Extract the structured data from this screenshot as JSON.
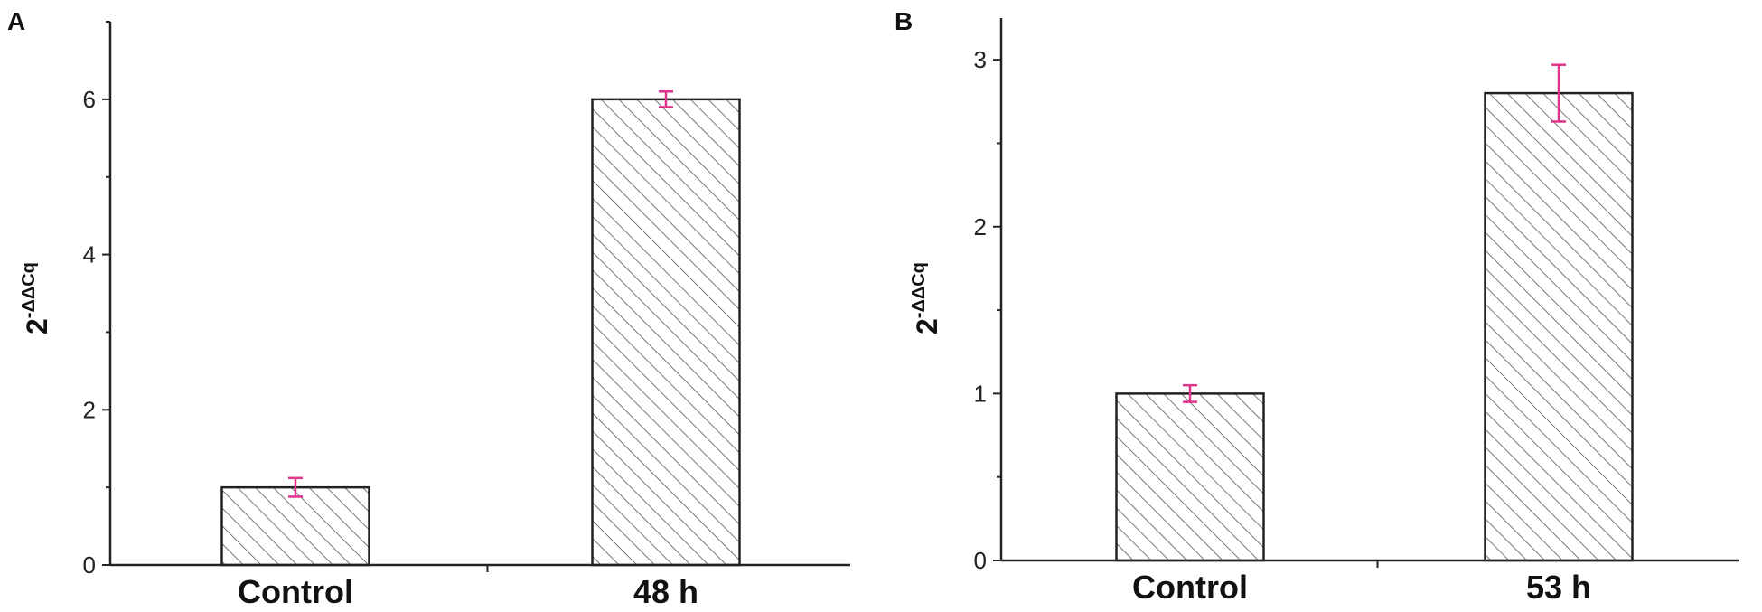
{
  "chart_data": [
    {
      "type": "bar",
      "panel_label": "A",
      "ylabel_base": "2",
      "ylabel_sup": "-ΔΔCq",
      "categories": [
        "Control",
        "48 h"
      ],
      "values": [
        1.0,
        6.0
      ],
      "errors": [
        0.12,
        0.1
      ],
      "ylim": [
        0,
        7
      ],
      "yticks": [
        "0",
        "2",
        "4",
        "6"
      ],
      "ytick_values": [
        0,
        2,
        4,
        6
      ],
      "bar_fill": "hatched",
      "error_color": "#e0338a"
    },
    {
      "type": "bar",
      "panel_label": "B",
      "ylabel_base": "2",
      "ylabel_sup": "-ΔΔCq",
      "categories": [
        "Control",
        "53 h"
      ],
      "values": [
        1.0,
        2.8
      ],
      "errors": [
        0.05,
        0.17
      ],
      "ylim": [
        0,
        3.25
      ],
      "yticks": [
        "0",
        "1",
        "2",
        "3"
      ],
      "ytick_values": [
        0,
        1,
        2,
        3
      ],
      "bar_fill": "hatched",
      "error_color": "#e0338a"
    }
  ]
}
